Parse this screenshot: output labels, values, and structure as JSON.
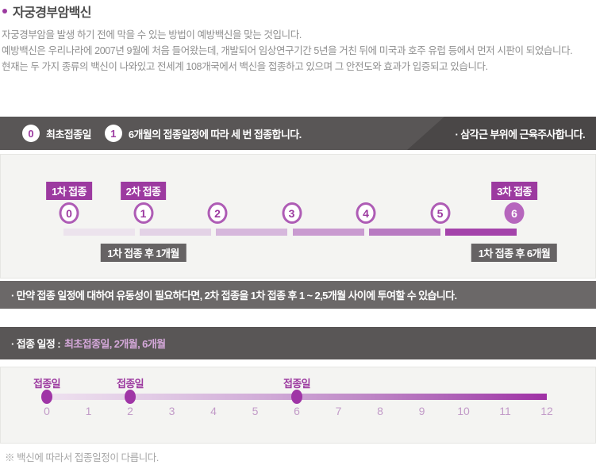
{
  "colors": {
    "accent_purple": "#9c3aa0",
    "circle_border": "#ae5cb5",
    "circle_filled": "#b666bd",
    "header_bar": "#595656",
    "header_bar_darker": "#4a4747",
    "note_bar": "#6b6868",
    "gray_tag": "#666364",
    "box_background": "#f4f4f2",
    "tick_text": "#c29bc8",
    "header_value_text": "#d5a8da"
  },
  "title": {
    "text": "자궁경부암백신"
  },
  "intro": {
    "lines": [
      "자궁경부암을 발생 하기 전에 막을 수 있는 방법이 예방백신을 맞는 것입니다.",
      "예방백신은 우리나라에 2007년 9월에 처음 들어왔는데, 개발되어 임상연구기간 5년을 거친 뒤에 미국과 호주 유럽 등에서 먼저 시판이 되었습니다.",
      "현재는 두 가지 종류의 백신이 나와있고 전세계 108개국에서 백신을 접종하고 있으며 그 안전도와 효과가 입증되고 있습니다."
    ]
  },
  "schedule_header": {
    "badges": [
      {
        "num": "0",
        "label": "최초접종일"
      },
      {
        "num": "1",
        "label": "6개월의 접종일정에 따라 세 번 접종합니다."
      }
    ],
    "side_note": "· 삼각근 부위에 근육주사합니다."
  },
  "timeline1": {
    "months": [
      "0",
      "1",
      "2",
      "3",
      "4",
      "5",
      "6"
    ],
    "filled_month": 6,
    "dose_tags": [
      {
        "label": "1차 접종",
        "month": 0
      },
      {
        "label": "2차 접종",
        "month": 1
      },
      {
        "label": "3차 접종",
        "month": 6
      }
    ],
    "after_tags": [
      {
        "label": "1차 접종 후 1개월",
        "month": 1
      },
      {
        "label": "1차 접종 후 6개월",
        "month": 6
      }
    ],
    "segment_colors": [
      "#ece3ed",
      "#e3d2e6",
      "#d6b7dc",
      "#c99ad0",
      "#b87ac2",
      "#a443ab"
    ]
  },
  "flexibility_note": "· 만약 접종 일정에 대하여 유동성이 필요하다면, 2차 접종을 1차 접종 후 1 ~ 2,5개월 사이에 투여할 수 있습니다.",
  "schedule2_header": {
    "label": "· 접종 일정 :",
    "value": "최초접종일, 2개월, 6개월"
  },
  "timeline2": {
    "ticks": [
      "0",
      "1",
      "2",
      "3",
      "4",
      "5",
      "6",
      "7",
      "8",
      "9",
      "10",
      "11",
      "12"
    ],
    "dose_months": [
      0,
      2,
      6
    ],
    "dose_label": "접종일"
  },
  "footnote": "※ 백신에 따라서 접종일정이 다릅니다."
}
